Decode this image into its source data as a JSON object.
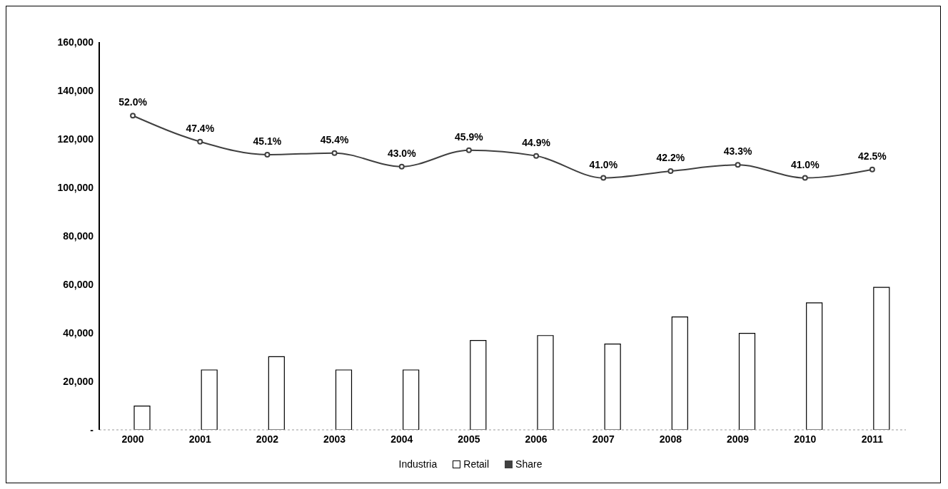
{
  "chart_data": {
    "type": "bar",
    "categories": [
      "2000",
      "2001",
      "2002",
      "2003",
      "2004",
      "2005",
      "2006",
      "2007",
      "2008",
      "2009",
      "2010",
      "2011"
    ],
    "series": [
      {
        "name": "Industria",
        "values": [
          null,
          null,
          null,
          null,
          null,
          null,
          null,
          null,
          null,
          null,
          null,
          null
        ]
      },
      {
        "name": "Retail",
        "color": "#000000",
        "values": [
          9800,
          24700,
          30200,
          24700,
          24700,
          36900,
          38900,
          35400,
          46600,
          39800,
          52400,
          58800
        ]
      },
      {
        "name": "Share",
        "type": "line",
        "axis": "y2",
        "color": "#404040",
        "values": [
          52.0,
          47.4,
          45.1,
          45.4,
          43.0,
          45.9,
          44.9,
          41.0,
          42.2,
          43.3,
          41.0,
          42.5
        ],
        "value_labels": [
          "52.0%",
          "47.4%",
          "45.1%",
          "45.4%",
          "43.0%",
          "45.9%",
          "44.9%",
          "41.0%",
          "42.2%",
          "43.3%",
          "41.0%",
          "42.5%"
        ]
      }
    ],
    "ylim": [
      0,
      160000
    ],
    "yticks": [
      {
        "value": 0,
        "label": "-"
      },
      {
        "value": 20000,
        "label": "20,000"
      },
      {
        "value": 40000,
        "label": "40,000"
      },
      {
        "value": 60000,
        "label": "60,000"
      },
      {
        "value": 80000,
        "label": "80,000"
      },
      {
        "value": 100000,
        "label": "100,000"
      },
      {
        "value": 120000,
        "label": "120,000"
      },
      {
        "value": 140000,
        "label": "140,000"
      },
      {
        "value": 160000,
        "label": "160,000"
      }
    ],
    "y2lim": [
      -3.5,
      65
    ],
    "legend": "bottom",
    "marker": "circle",
    "line_style": "solid"
  }
}
